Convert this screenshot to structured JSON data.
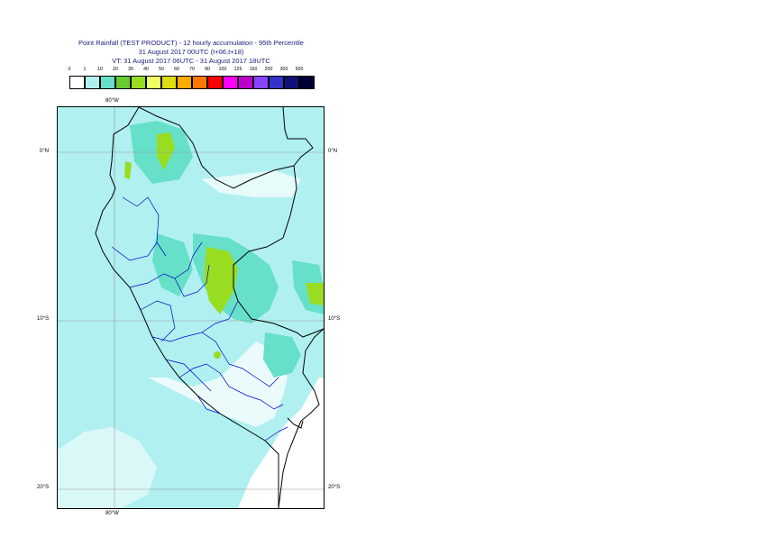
{
  "titles": {
    "line1": "Point Rainfall (TEST PRODUCT) - 12 hourly accumulation - 95th Percentile",
    "line2": "31 August 2017 00UTC (t+06,t+18)",
    "line3": "VT: 31 August 2017 06UTC - 31 August 2017 18UTC"
  },
  "legend": [
    {
      "label": "0",
      "color": "#ffffff"
    },
    {
      "label": "1",
      "color": "#b0f0f0"
    },
    {
      "label": "10",
      "color": "#66e0c8"
    },
    {
      "label": "20",
      "color": "#66cc33"
    },
    {
      "label": "30",
      "color": "#99dd22"
    },
    {
      "label": "40",
      "color": "#eeff66"
    },
    {
      "label": "50",
      "color": "#dddd11"
    },
    {
      "label": "60",
      "color": "#ffaa00"
    },
    {
      "label": "70",
      "color": "#ff7700"
    },
    {
      "label": "80",
      "color": "#ff0000"
    },
    {
      "label": "100",
      "color": "#ff00ff"
    },
    {
      "label": "125",
      "color": "#bb00cc"
    },
    {
      "label": "150",
      "color": "#8844ff"
    },
    {
      "label": "200",
      "color": "#3333cc"
    },
    {
      "label": "300",
      "color": "#111177"
    },
    {
      "label": "500",
      "color": "#000033"
    }
  ],
  "grid": {
    "lon_top": "80°W",
    "lon_bottom": "80°W",
    "lat_left": [
      "0°N",
      "10°S",
      "20°S"
    ],
    "lat_right": [
      "0°N",
      "10°S",
      "20°S"
    ]
  }
}
